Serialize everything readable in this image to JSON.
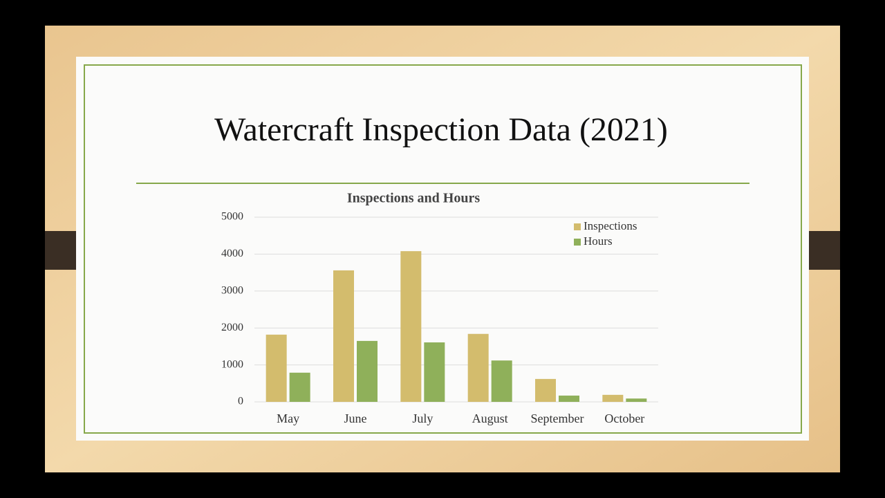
{
  "slide_title": "Watercraft Inspection Data (2021)",
  "chart_data": {
    "type": "bar",
    "title": "Inspections and Hours",
    "categories": [
      "May",
      "June",
      "July",
      "August",
      "September",
      "October"
    ],
    "series": [
      {
        "name": "Inspections",
        "color": "#d3bc6d",
        "values": [
          1820,
          3560,
          4080,
          1840,
          620,
          190
        ]
      },
      {
        "name": "Hours",
        "color": "#8fb05a",
        "values": [
          790,
          1650,
          1610,
          1120,
          170,
          90
        ]
      }
    ],
    "ylim": [
      0,
      5000
    ],
    "yticks": [
      0,
      1000,
      2000,
      3000,
      4000,
      5000
    ],
    "grid": true,
    "legend": "top-right"
  }
}
